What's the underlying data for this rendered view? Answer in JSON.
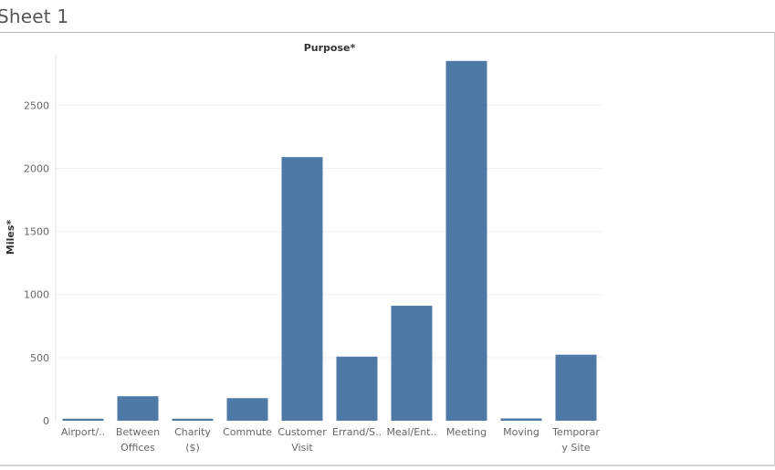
{
  "sheet": {
    "title": "Sheet 1"
  },
  "chart_data": {
    "type": "bar",
    "title": "Purpose*",
    "xlabel": "",
    "ylabel": "Miles*",
    "categories": [
      [
        "Airport/.."
      ],
      [
        "Between",
        "Offices"
      ],
      [
        "Charity",
        "($)"
      ],
      [
        "Commute"
      ],
      [
        "Customer",
        "Visit"
      ],
      [
        "Errand/S.."
      ],
      [
        "Meal/Ent.."
      ],
      [
        "Meeting"
      ],
      [
        "Moving"
      ],
      [
        "Temporar",
        "y Site"
      ]
    ],
    "values": [
      16,
      194,
      16,
      179,
      2089,
      508,
      911,
      2851,
      18,
      523
    ],
    "ylim": [
      0,
      2900
    ],
    "yticks": [
      0,
      500,
      1000,
      1500,
      2000,
      2500
    ],
    "grid": true,
    "legend": "none",
    "bar_color": "#4e79a7",
    "grid_color": "#f0f0f0"
  }
}
